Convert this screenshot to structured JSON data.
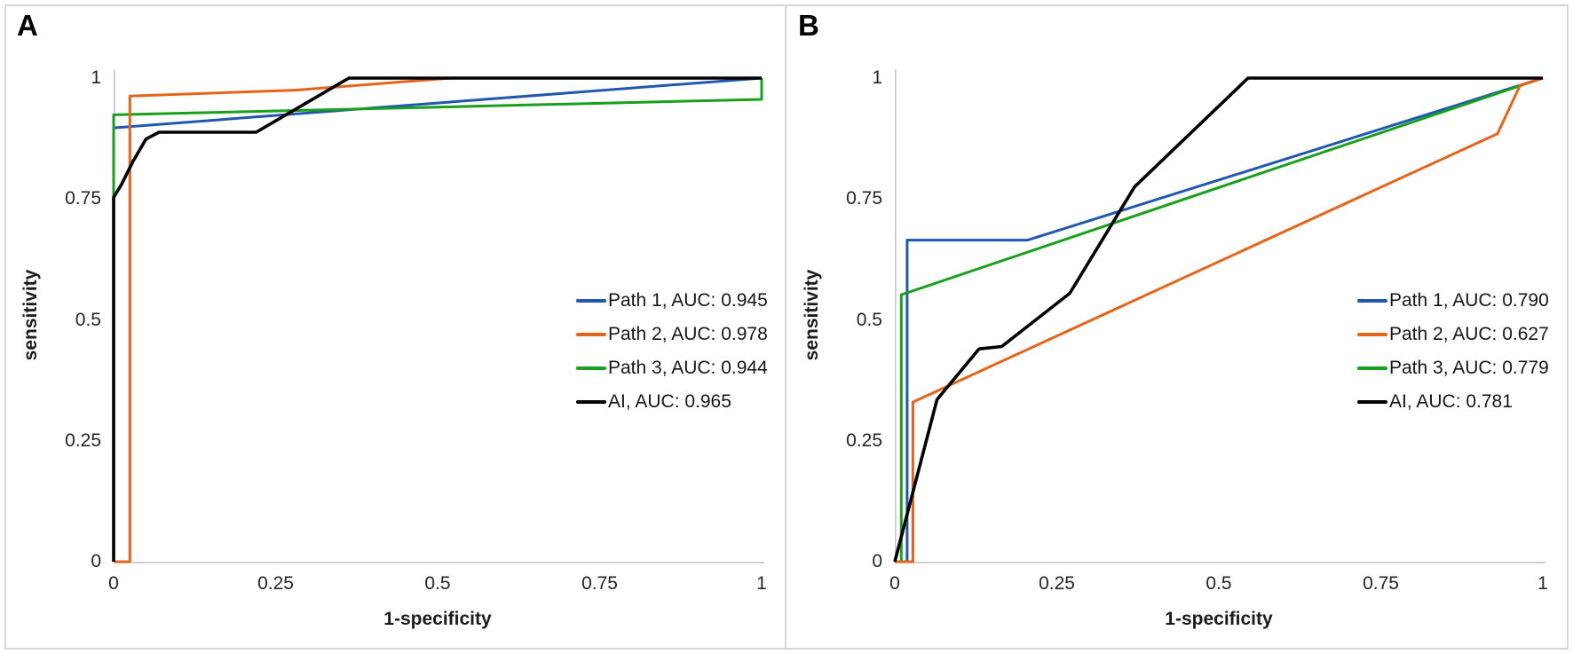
{
  "figure": {
    "border_color": "#d6d6d6",
    "axis_line_color": "#c6c6c6",
    "tick_text_color": "#242424",
    "background": "#ffffff"
  },
  "chart_data": [
    {
      "type": "line",
      "letter": "A",
      "xlabel": "1-specificity",
      "ylabel": "sensitivity",
      "xlim": [
        0,
        1
      ],
      "ylim": [
        0,
        1
      ],
      "grid": false,
      "legend_position": "right-middle",
      "xticks": [
        0,
        0.25,
        0.5,
        0.75,
        1
      ],
      "yticks": [
        0,
        0.25,
        0.5,
        0.75,
        1
      ],
      "xtick_labels": [
        "0",
        "0.25",
        "0.5",
        "0.75",
        "1"
      ],
      "ytick_labels": [
        "0",
        "0.25",
        "0.5",
        "0.75",
        "1"
      ],
      "series": [
        {
          "name": "Path 1",
          "auc": "0.945",
          "label": "Path 1, AUC: 0.945",
          "color": "#2057b0",
          "stroke_width": 3,
          "z": 1,
          "points": [
            [
              0,
              0
            ],
            [
              0,
              0.897
            ],
            [
              1,
              1
            ]
          ]
        },
        {
          "name": "Path 2",
          "auc": "0.978",
          "label": "Path 2, AUC: 0.978",
          "color": "#e8631a",
          "stroke_width": 3,
          "z": 3,
          "points": [
            [
              0,
              0
            ],
            [
              0.025,
              0
            ],
            [
              0.025,
              0.963
            ],
            [
              0.28,
              0.975
            ],
            [
              0.52,
              1
            ],
            [
              1,
              1
            ]
          ]
        },
        {
          "name": "Path 3",
          "auc": "0.944",
          "label": "Path 3, AUC: 0.944",
          "color": "#18a01d",
          "stroke_width": 3,
          "z": 2,
          "points": [
            [
              0,
              0
            ],
            [
              0,
              0.924
            ],
            [
              1,
              0.956
            ],
            [
              1,
              1
            ]
          ]
        },
        {
          "name": "AI",
          "auc": "0.965",
          "label": "AI, AUC: 0.965",
          "color": "#000000",
          "stroke_width": 3.6,
          "z": 4,
          "points": [
            [
              0,
              0
            ],
            [
              0,
              0.753
            ],
            [
              0.012,
              0.78
            ],
            [
              0.03,
              0.828
            ],
            [
              0.05,
              0.874
            ],
            [
              0.07,
              0.888
            ],
            [
              0.22,
              0.888
            ],
            [
              0.363,
              1
            ],
            [
              1,
              1
            ]
          ]
        }
      ]
    },
    {
      "type": "line",
      "letter": "B",
      "xlabel": "1-specificity",
      "ylabel": "sensitivity",
      "xlim": [
        0,
        1
      ],
      "ylim": [
        0,
        1
      ],
      "grid": false,
      "legend_position": "right-middle",
      "xticks": [
        0,
        0.25,
        0.5,
        0.75,
        1
      ],
      "yticks": [
        0,
        0.25,
        0.5,
        0.75,
        1
      ],
      "xtick_labels": [
        "0",
        "0.25",
        "0.5",
        "0.75",
        "1"
      ],
      "ytick_labels": [
        "0",
        "0.25",
        "0.5",
        "0.75",
        "1"
      ],
      "series": [
        {
          "name": "Path 1",
          "auc": "0.790",
          "label": "Path 1, AUC: 0.790",
          "color": "#2057b0",
          "stroke_width": 3,
          "z": 1,
          "points": [
            [
              0,
              0
            ],
            [
              0.019,
              0
            ],
            [
              0.019,
              0.665
            ],
            [
              0.205,
              0.665
            ],
            [
              1,
              1
            ]
          ]
        },
        {
          "name": "Path 2",
          "auc": "0.627",
          "label": "Path 2, AUC: 0.627",
          "color": "#e8631a",
          "stroke_width": 3,
          "z": 3,
          "points": [
            [
              0,
              0
            ],
            [
              0.028,
              0
            ],
            [
              0.028,
              0.33
            ],
            [
              0.93,
              0.885
            ],
            [
              0.965,
              0.985
            ],
            [
              1,
              1
            ]
          ]
        },
        {
          "name": "Path 3",
          "auc": "0.779",
          "label": "Path 3, AUC: 0.779",
          "color": "#18a01d",
          "stroke_width": 3,
          "z": 2,
          "points": [
            [
              0,
              0
            ],
            [
              0.01,
              0
            ],
            [
              0.01,
              0.552
            ],
            [
              1,
              1
            ]
          ]
        },
        {
          "name": "AI",
          "auc": "0.781",
          "label": "AI, AUC: 0.781",
          "color": "#000000",
          "stroke_width": 3.6,
          "z": 4,
          "points": [
            [
              0,
              0
            ],
            [
              0.065,
              0.335
            ],
            [
              0.13,
              0.44
            ],
            [
              0.165,
              0.445
            ],
            [
              0.27,
              0.555
            ],
            [
              0.37,
              0.775
            ],
            [
              0.545,
              1
            ],
            [
              1,
              1
            ]
          ]
        }
      ]
    }
  ]
}
